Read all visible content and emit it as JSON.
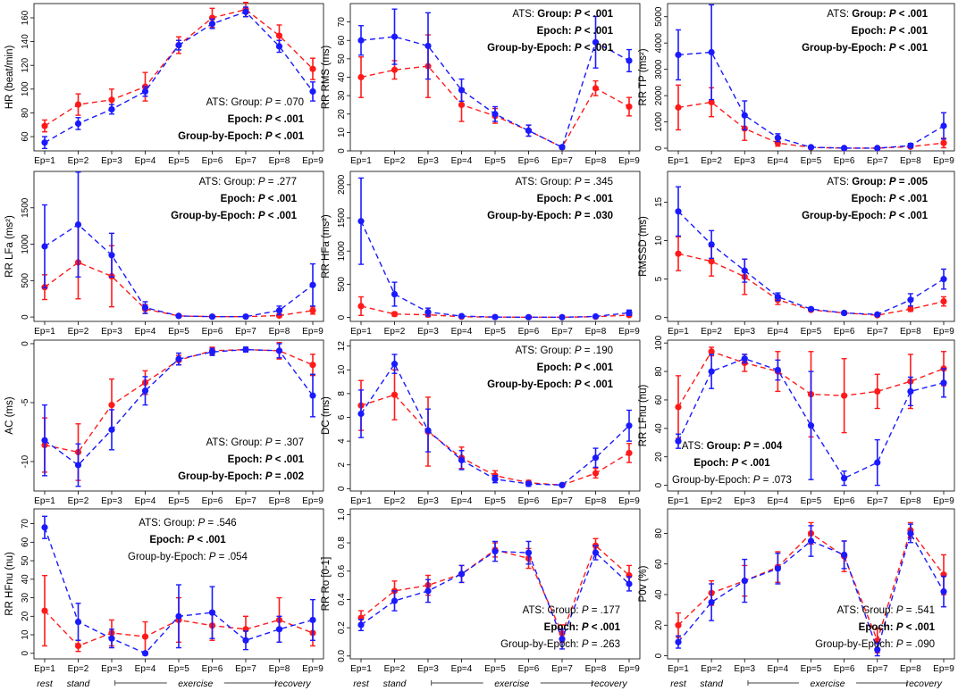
{
  "colors": {
    "ats": "#1a1aff",
    "control": "#ff1a1a",
    "axis": "#000000"
  },
  "epochs": [
    "Ep=1",
    "Ep=2",
    "Ep=3",
    "Ep=4",
    "Ep=5",
    "Ep=6",
    "Ep=7",
    "Ep=8",
    "Ep=9"
  ],
  "phases": {
    "rest": "rest",
    "stand": "stand",
    "exercise": "exercise",
    "recovery": "recovery"
  },
  "chart_data": [
    {
      "type": "line",
      "id": "hr",
      "ylabel": "HR (beat/min)",
      "ylim": [
        48,
        172
      ],
      "yticks": [
        60,
        80,
        100,
        120,
        140,
        160
      ],
      "series": [
        {
          "name": "blue",
          "values": [
            55,
            71,
            83,
            98,
            137,
            155,
            165,
            136,
            98
          ],
          "err": [
            5,
            5,
            4,
            4,
            4,
            4,
            4,
            5,
            8
          ]
        },
        {
          "name": "red",
          "values": [
            69,
            87,
            91,
            102,
            137,
            160,
            167,
            145,
            117
          ],
          "err": [
            5,
            9,
            9,
            12,
            7,
            8,
            6,
            9,
            9
          ]
        }
      ],
      "ann_pos": "bottom-right",
      "annotations": [
        {
          "pre": "ATS: Group: ",
          "it": "P",
          "post": " = .070",
          "bold": false
        },
        {
          "pre": "Epoch: ",
          "it": "P",
          "post": " < .001",
          "bold": true
        },
        {
          "pre": "Group-by-Epoch: ",
          "it": "P",
          "post": " < .001",
          "bold": true
        }
      ]
    },
    {
      "type": "line",
      "id": "rms",
      "ylabel": "RR RMS (ms)",
      "ylim": [
        0,
        80
      ],
      "yticks": [
        0,
        10,
        20,
        30,
        40,
        50,
        60,
        70
      ],
      "series": [
        {
          "name": "blue",
          "values": [
            60,
            62,
            57,
            33,
            20,
            11,
            2,
            59,
            49
          ],
          "err": [
            8,
            15,
            18,
            6,
            4,
            3,
            1,
            14,
            6
          ]
        },
        {
          "name": "red",
          "values": [
            40,
            44,
            46,
            25,
            19,
            11,
            2,
            34,
            24
          ],
          "err": [
            11,
            5,
            17,
            9,
            4,
            3,
            1,
            4,
            5
          ]
        }
      ],
      "ann_pos": "top-right",
      "annotations": [
        {
          "pre": "ATS: Group: ",
          "it": "P",
          "post": " < .001",
          "bold": true,
          "boldFrom": 5
        },
        {
          "pre": "Epoch: ",
          "it": "P",
          "post": " < .001",
          "bold": true
        },
        {
          "pre": "Group-by-Epoch: ",
          "it": "P",
          "post": " < .001",
          "bold": true
        }
      ]
    },
    {
      "type": "line",
      "id": "tp",
      "ylabel": "RR TP (ms²)",
      "ylim": [
        -100,
        5500
      ],
      "yticks": [
        0,
        1000,
        2000,
        3000,
        4000,
        5000
      ],
      "series": [
        {
          "name": "blue",
          "values": [
            3550,
            3650,
            1250,
            400,
            40,
            5,
            5,
            100,
            850
          ],
          "err": [
            950,
            1800,
            550,
            150,
            20,
            5,
            5,
            80,
            500
          ]
        },
        {
          "name": "red",
          "values": [
            1550,
            1750,
            750,
            200,
            30,
            5,
            5,
            60,
            200
          ],
          "err": [
            850,
            550,
            450,
            120,
            20,
            5,
            5,
            50,
            180
          ]
        }
      ],
      "ann_pos": "top-right",
      "annotations": [
        {
          "pre": "ATS: Group: ",
          "it": "P",
          "post": " < .001",
          "bold": true,
          "boldFrom": 5
        },
        {
          "pre": "Epoch: ",
          "it": "P",
          "post": " < .001",
          "bold": true
        },
        {
          "pre": "Group-by-Epoch: ",
          "it": "P",
          "post": " < .001",
          "bold": true
        }
      ]
    },
    {
      "type": "line",
      "id": "lfa",
      "ylabel": "RR LFa (ms²)",
      "ylim": [
        -60,
        2000
      ],
      "yticks": [
        0,
        500,
        1000,
        1500
      ],
      "series": [
        {
          "name": "blue",
          "values": [
            970,
            1270,
            850,
            130,
            15,
            5,
            5,
            90,
            440
          ],
          "err": [
            570,
            720,
            300,
            80,
            10,
            5,
            5,
            60,
            290
          ]
        },
        {
          "name": "red",
          "values": [
            410,
            750,
            560,
            110,
            15,
            5,
            5,
            20,
            90
          ],
          "err": [
            170,
            500,
            420,
            60,
            10,
            5,
            5,
            20,
            50
          ]
        }
      ],
      "ann_pos": "top-right",
      "annotations": [
        {
          "pre": "ATS: Group: ",
          "it": "P",
          "post": " = .277",
          "bold": false
        },
        {
          "pre": "Epoch: ",
          "it": "P",
          "post": " < .001",
          "bold": true
        },
        {
          "pre": "Group-by-Epoch: ",
          "it": "P",
          "post": " < .001",
          "bold": true
        }
      ]
    },
    {
      "type": "line",
      "id": "hfa",
      "ylabel": "RR HFa (ms²)",
      "ylim": [
        -60,
        2200
      ],
      "yticks": [
        0,
        500,
        1000,
        1500,
        2000
      ],
      "series": [
        {
          "name": "blue",
          "values": [
            1450,
            350,
            80,
            20,
            5,
            3,
            3,
            15,
            70
          ],
          "err": [
            650,
            180,
            60,
            15,
            5,
            3,
            3,
            10,
            40
          ]
        },
        {
          "name": "red",
          "values": [
            170,
            50,
            40,
            10,
            5,
            3,
            3,
            10,
            35
          ],
          "err": [
            140,
            30,
            30,
            10,
            5,
            3,
            3,
            8,
            20
          ]
        }
      ],
      "ann_pos": "top-right",
      "annotations": [
        {
          "pre": "ATS: Group: ",
          "it": "P",
          "post": " = .345",
          "bold": false
        },
        {
          "pre": "Epoch: ",
          "it": "P",
          "post": " < .001",
          "bold": true
        },
        {
          "pre": "Group-by-Epoch: ",
          "it": "P",
          "post": " = .030",
          "bold": true
        }
      ]
    },
    {
      "type": "line",
      "id": "rmssd",
      "ylabel": "RMSSD (ms)",
      "ylim": [
        -0.5,
        19
      ],
      "yticks": [
        0,
        5,
        10,
        15
      ],
      "series": [
        {
          "name": "blue",
          "values": [
            13.8,
            9.5,
            6.1,
            2.7,
            1.1,
            0.6,
            0.4,
            2.3,
            5.0
          ],
          "err": [
            3.2,
            1.8,
            1.5,
            0.5,
            0.2,
            0.2,
            0.1,
            0.8,
            1.3
          ]
        },
        {
          "name": "red",
          "values": [
            8.3,
            7.3,
            5.3,
            2.3,
            1.0,
            0.6,
            0.3,
            1.1,
            2.1
          ],
          "err": [
            2.2,
            1.9,
            2.3,
            0.6,
            0.2,
            0.2,
            0.1,
            0.3,
            0.6
          ]
        }
      ],
      "ann_pos": "top-right",
      "annotations": [
        {
          "pre": "ATS: Group: ",
          "it": "P",
          "post": " = .005",
          "bold": true,
          "boldFrom": 5
        },
        {
          "pre": "Epoch: ",
          "it": "P",
          "post": " < .001",
          "bold": true
        },
        {
          "pre": "Group-by-Epoch: ",
          "it": "P",
          "post": " < .001",
          "bold": true
        }
      ]
    },
    {
      "type": "line",
      "id": "ac",
      "ylabel": "AC (ms)",
      "ylim": [
        -12.5,
        0.3
      ],
      "yticks": [
        -10,
        -5,
        0
      ],
      "series": [
        {
          "name": "blue",
          "values": [
            -8.2,
            -10.3,
            -7.3,
            -4.0,
            -1.3,
            -0.7,
            -0.5,
            -0.6,
            -4.4
          ],
          "err": [
            3.0,
            1.8,
            1.7,
            1.2,
            0.5,
            0.3,
            0.2,
            0.6,
            1.8
          ]
        },
        {
          "name": "red",
          "values": [
            -8.6,
            -9.2,
            -5.2,
            -3.3,
            -1.4,
            -0.6,
            -0.5,
            -0.6,
            -1.8
          ],
          "err": [
            2.3,
            2.4,
            2.2,
            1.0,
            0.4,
            0.3,
            0.2,
            0.7,
            0.9
          ]
        }
      ],
      "ann_pos": "bottom-right",
      "annotations": [
        {
          "pre": "ATS: Group: ",
          "it": "P",
          "post": " = .307",
          "bold": false
        },
        {
          "pre": "Epoch: ",
          "it": "P",
          "post": " < .001",
          "bold": true
        },
        {
          "pre": "Group-by-Epoch: ",
          "it": "P",
          "post": " = .002",
          "bold": true
        }
      ]
    },
    {
      "type": "line",
      "id": "dc",
      "ylabel": "DC (ms)",
      "ylim": [
        -0.2,
        12.5
      ],
      "yticks": [
        0,
        2,
        4,
        6,
        8,
        10,
        12
      ],
      "series": [
        {
          "name": "blue",
          "values": [
            6.3,
            10.5,
            4.9,
            2.4,
            0.8,
            0.4,
            0.3,
            2.6,
            5.3
          ],
          "err": [
            2.0,
            0.8,
            1.8,
            0.8,
            0.3,
            0.2,
            0.1,
            0.8,
            1.3
          ]
        },
        {
          "name": "red",
          "values": [
            7.0,
            7.9,
            4.8,
            2.6,
            1.1,
            0.5,
            0.3,
            1.3,
            3.0
          ],
          "err": [
            2.1,
            2.1,
            2.9,
            0.9,
            0.4,
            0.2,
            0.1,
            0.4,
            0.8
          ]
        }
      ],
      "ann_pos": "top-right",
      "annotations": [
        {
          "pre": "ATS: Group: ",
          "it": "P",
          "post": " = .190",
          "bold": false
        },
        {
          "pre": "Epoch: ",
          "it": "P",
          "post": " < .001",
          "bold": true
        },
        {
          "pre": "Group-by-Epoch: ",
          "it": "P",
          "post": " < .001",
          "bold": true
        }
      ]
    },
    {
      "type": "line",
      "id": "lfnu",
      "ylabel": "RR LFnu (nu)",
      "ylim": [
        -4,
        102
      ],
      "yticks": [
        0,
        20,
        40,
        60,
        80,
        100
      ],
      "series": [
        {
          "name": "blue",
          "values": [
            31,
            80,
            89,
            81,
            42,
            5,
            16,
            66,
            72
          ],
          "err": [
            5,
            12,
            3,
            7,
            38,
            5,
            16,
            10,
            10
          ]
        },
        {
          "name": "red",
          "values": [
            55,
            94,
            86,
            80,
            64,
            63,
            66,
            73,
            82
          ],
          "err": [
            22,
            3,
            6,
            14,
            30,
            26,
            12,
            19,
            12
          ]
        }
      ],
      "ann_pos": "bottom-left",
      "annotations": [
        {
          "pre": "ATS: Group: ",
          "it": "P",
          "post": " = .004",
          "bold": true,
          "boldFrom": 5
        },
        {
          "pre": "Epoch: ",
          "it": "P",
          "post": " < .001",
          "bold": true
        },
        {
          "pre": "Group-by-Epoch: ",
          "it": "P",
          "post": " = .073",
          "bold": false
        }
      ]
    },
    {
      "type": "line",
      "id": "hfnu",
      "ylabel": "RR HFnu (nu)",
      "ylim": [
        -3,
        78
      ],
      "yticks": [
        0,
        10,
        20,
        30,
        40,
        50,
        60,
        70
      ],
      "series": [
        {
          "name": "blue",
          "values": [
            68,
            17,
            8,
            0,
            20,
            22,
            7,
            13,
            18
          ],
          "err": [
            6,
            10,
            5,
            1,
            17,
            14,
            5,
            7,
            11
          ]
        },
        {
          "name": "red",
          "values": [
            23,
            4,
            11,
            9,
            18,
            15,
            13,
            18,
            11
          ],
          "err": [
            19,
            3,
            7,
            8,
            12,
            8,
            7,
            12,
            7
          ]
        }
      ],
      "ann_pos": "top-center",
      "annotations": [
        {
          "pre": "ATS: Group: ",
          "it": "P",
          "post": " = .546",
          "bold": false
        },
        {
          "pre": "Epoch: ",
          "it": "P",
          "post": " < .001",
          "bold": true
        },
        {
          "pre": "Group-by-Epoch: ",
          "it": "P",
          "post": " = .054",
          "bold": false
        }
      ]
    },
    {
      "type": "line",
      "id": "ro",
      "ylabel": "RR Ro [0-1]",
      "ylim": [
        -0.02,
        1.04
      ],
      "yticks": [
        0.0,
        0.2,
        0.4,
        0.6,
        0.8,
        1.0
      ],
      "series": [
        {
          "name": "blue",
          "values": [
            0.22,
            0.39,
            0.46,
            0.58,
            0.74,
            0.73,
            0.12,
            0.73,
            0.51
          ],
          "err": [
            0.04,
            0.07,
            0.08,
            0.06,
            0.07,
            0.08,
            0.07,
            0.05,
            0.05
          ]
        },
        {
          "name": "red",
          "values": [
            0.27,
            0.46,
            0.5,
            0.58,
            0.75,
            0.69,
            0.16,
            0.78,
            0.57
          ],
          "err": [
            0.05,
            0.07,
            0.07,
            0.06,
            0.05,
            0.07,
            0.06,
            0.05,
            0.07
          ]
        }
      ],
      "ann_pos": "bottom-right",
      "annotations": [
        {
          "pre": "ATS: Group: ",
          "it": "P",
          "post": " = .177",
          "bold": false
        },
        {
          "pre": "Epoch: ",
          "it": "P",
          "post": " < .001",
          "bold": true
        },
        {
          "pre": "Group-by-Epoch: ",
          "it": "P",
          "post": " = .263",
          "bold": false
        }
      ]
    },
    {
      "type": "line",
      "id": "p0v",
      "ylabel": "P0v (%)",
      "ylim": [
        -2,
        96
      ],
      "yticks": [
        0,
        20,
        40,
        60,
        80
      ],
      "series": [
        {
          "name": "blue",
          "values": [
            9,
            35,
            49,
            57,
            75,
            66,
            4,
            80,
            42
          ],
          "err": [
            4,
            12,
            14,
            10,
            10,
            9,
            4,
            6,
            10
          ]
        },
        {
          "name": "red",
          "values": [
            20,
            41,
            49,
            58,
            80,
            65,
            10,
            82,
            53
          ],
          "err": [
            8,
            8,
            10,
            10,
            7,
            10,
            8,
            5,
            13
          ]
        }
      ],
      "ann_pos": "bottom-right",
      "annotations": [
        {
          "pre": "ATS: Group: ",
          "it": "P",
          "post": " = .541",
          "bold": false
        },
        {
          "pre": "Epoch: ",
          "it": "P",
          "post": " < .001",
          "bold": true
        },
        {
          "pre": "Group-by-Epoch: ",
          "it": "P",
          "post": " = .090",
          "bold": false
        }
      ]
    }
  ]
}
